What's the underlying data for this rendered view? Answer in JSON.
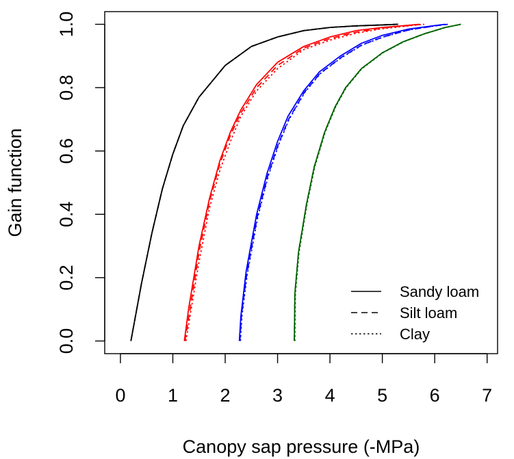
{
  "chart_data": {
    "type": "line",
    "title": "",
    "xlabel": "Canopy sap pressure (-MPa)",
    "ylabel": "Gain function",
    "xlim": [
      -0.3,
      7.2
    ],
    "ylim": [
      -0.04,
      1.04
    ],
    "xticks": [
      "0",
      "1",
      "2",
      "3",
      "4",
      "5",
      "6",
      "7"
    ],
    "yticks": [
      "0.0",
      "0.2",
      "0.4",
      "0.6",
      "0.8",
      "1.0"
    ],
    "grid": false,
    "legend": {
      "position": "bottom-right",
      "entries": [
        {
          "label": "Sandy loam",
          "linestyle": "solid"
        },
        {
          "label": "Silt loam",
          "linestyle": "dashed"
        },
        {
          "label": "Clay",
          "linestyle": "dotted"
        }
      ]
    },
    "series": [
      {
        "color": "#000000",
        "linestyle": "solid",
        "x": [
          0.2,
          0.4,
          0.6,
          0.8,
          1.0,
          1.2,
          1.5,
          2.0,
          2.5,
          3.0,
          3.5,
          4.0,
          4.5,
          5.0,
          5.3
        ],
        "y": [
          0.0,
          0.18,
          0.34,
          0.48,
          0.59,
          0.68,
          0.77,
          0.87,
          0.93,
          0.96,
          0.98,
          0.99,
          0.995,
          0.998,
          1.0
        ]
      },
      {
        "color": "#000000",
        "linestyle": "dashed",
        "x": [
          0.2,
          0.4,
          0.6,
          0.8,
          1.0,
          1.2,
          1.5,
          2.0,
          2.5,
          3.0,
          3.5,
          4.0,
          4.5,
          5.0,
          5.3
        ],
        "y": [
          0.0,
          0.18,
          0.34,
          0.48,
          0.59,
          0.68,
          0.77,
          0.87,
          0.93,
          0.96,
          0.98,
          0.99,
          0.995,
          0.998,
          1.0
        ]
      },
      {
        "color": "#000000",
        "linestyle": "dotted",
        "x": [
          0.2,
          0.4,
          0.6,
          0.8,
          1.0,
          1.2,
          1.5,
          2.0,
          2.5,
          3.0,
          3.5,
          4.0,
          4.5,
          5.0,
          5.3
        ],
        "y": [
          0.0,
          0.18,
          0.34,
          0.48,
          0.59,
          0.68,
          0.77,
          0.87,
          0.93,
          0.96,
          0.98,
          0.99,
          0.995,
          0.998,
          1.0
        ]
      },
      {
        "color": "#ff0000",
        "linestyle": "solid",
        "x": [
          1.22,
          1.3,
          1.5,
          1.7,
          1.9,
          2.1,
          2.3,
          2.6,
          3.0,
          3.5,
          4.0,
          4.5,
          5.0,
          5.5,
          5.7
        ],
        "y": [
          0.0,
          0.1,
          0.3,
          0.45,
          0.57,
          0.66,
          0.73,
          0.81,
          0.88,
          0.93,
          0.96,
          0.98,
          0.99,
          0.997,
          1.0
        ]
      },
      {
        "color": "#ff0000",
        "linestyle": "dashed",
        "x": [
          1.23,
          1.32,
          1.5,
          1.7,
          1.9,
          2.1,
          2.3,
          2.6,
          3.0,
          3.5,
          4.0,
          4.5,
          5.0,
          5.5,
          5.75
        ],
        "y": [
          0.0,
          0.09,
          0.28,
          0.44,
          0.56,
          0.65,
          0.72,
          0.8,
          0.87,
          0.925,
          0.955,
          0.975,
          0.988,
          0.996,
          1.0
        ]
      },
      {
        "color": "#ff0000",
        "linestyle": "dotted",
        "x": [
          1.25,
          1.35,
          1.5,
          1.7,
          1.9,
          2.1,
          2.3,
          2.6,
          3.0,
          3.5,
          4.0,
          4.5,
          5.0,
          5.5,
          5.8
        ],
        "y": [
          0.0,
          0.1,
          0.25,
          0.42,
          0.54,
          0.63,
          0.71,
          0.79,
          0.86,
          0.92,
          0.95,
          0.972,
          0.986,
          0.995,
          1.0
        ]
      },
      {
        "color": "#0000ff",
        "linestyle": "solid",
        "x": [
          2.27,
          2.3,
          2.4,
          2.6,
          2.8,
          3.0,
          3.2,
          3.5,
          3.8,
          4.2,
          4.6,
          5.0,
          5.5,
          6.0,
          6.2
        ],
        "y": [
          0.0,
          0.08,
          0.22,
          0.4,
          0.53,
          0.63,
          0.71,
          0.79,
          0.85,
          0.9,
          0.94,
          0.965,
          0.985,
          0.996,
          1.0
        ]
      },
      {
        "color": "#0000ff",
        "linestyle": "dashed",
        "x": [
          2.28,
          2.31,
          2.41,
          2.61,
          2.81,
          3.01,
          3.21,
          3.51,
          3.81,
          4.21,
          4.61,
          5.01,
          5.5,
          6.0,
          6.25
        ],
        "y": [
          0.0,
          0.08,
          0.21,
          0.39,
          0.52,
          0.62,
          0.7,
          0.785,
          0.845,
          0.895,
          0.935,
          0.96,
          0.982,
          0.995,
          1.0
        ]
      },
      {
        "color": "#0000ff",
        "linestyle": "dotted",
        "x": [
          2.29,
          2.32,
          2.42,
          2.62,
          2.82,
          3.02,
          3.22,
          3.52,
          3.82,
          4.22,
          4.62,
          5.02,
          5.5,
          6.0,
          6.25
        ],
        "y": [
          0.0,
          0.08,
          0.21,
          0.39,
          0.52,
          0.62,
          0.7,
          0.785,
          0.845,
          0.895,
          0.935,
          0.96,
          0.982,
          0.995,
          1.0
        ]
      },
      {
        "color": "#006400",
        "linestyle": "solid",
        "x": [
          3.32,
          3.33,
          3.4,
          3.55,
          3.7,
          3.9,
          4.1,
          4.3,
          4.6,
          5.0,
          5.4,
          5.8,
          6.2,
          6.5
        ],
        "y": [
          0.0,
          0.15,
          0.28,
          0.43,
          0.55,
          0.66,
          0.74,
          0.8,
          0.86,
          0.91,
          0.945,
          0.97,
          0.99,
          1.0
        ]
      },
      {
        "color": "#006400",
        "linestyle": "dashed",
        "x": [
          3.32,
          3.33,
          3.4,
          3.55,
          3.7,
          3.9,
          4.1,
          4.3,
          4.6,
          5.0,
          5.4,
          5.8,
          6.2,
          6.5
        ],
        "y": [
          0.0,
          0.15,
          0.28,
          0.43,
          0.55,
          0.66,
          0.74,
          0.8,
          0.86,
          0.91,
          0.945,
          0.97,
          0.99,
          1.0
        ]
      },
      {
        "color": "#006400",
        "linestyle": "dotted",
        "x": [
          3.33,
          3.34,
          3.41,
          3.56,
          3.71,
          3.91,
          4.11,
          4.31,
          4.61,
          5.01,
          5.41,
          5.81,
          6.21,
          6.5
        ],
        "y": [
          0.0,
          0.15,
          0.28,
          0.43,
          0.55,
          0.66,
          0.74,
          0.8,
          0.86,
          0.91,
          0.945,
          0.97,
          0.99,
          1.0
        ]
      }
    ]
  }
}
